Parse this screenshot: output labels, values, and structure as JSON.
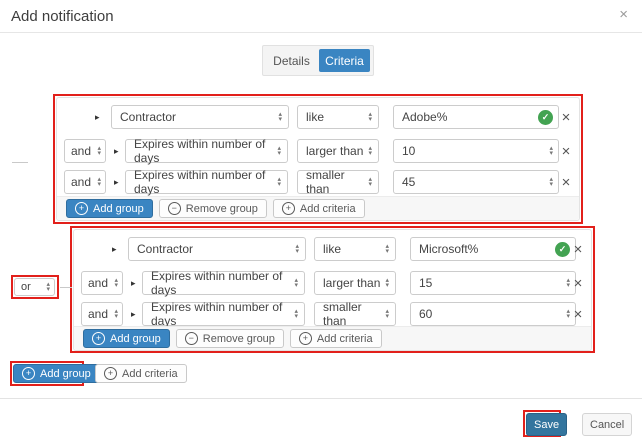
{
  "dialog": {
    "title": "Add notification"
  },
  "tabs": [
    {
      "label": "Details",
      "active": false
    },
    {
      "label": "Criteria",
      "active": true
    }
  ],
  "or_operator": "or",
  "groups": [
    {
      "rows": [
        {
          "field": "Contractor",
          "operator": "like",
          "value": "Adobe%",
          "valid": true
        },
        {
          "bool": "and",
          "field": "Expires within number of days",
          "operator": "larger than",
          "value": "10"
        },
        {
          "bool": "and",
          "field": "Expires within number of days",
          "operator": "smaller than",
          "value": "45"
        }
      ]
    },
    {
      "rows": [
        {
          "field": "Contractor",
          "operator": "like",
          "value": "Microsoft%",
          "valid": true
        },
        {
          "bool": "and",
          "field": "Expires within number of days",
          "operator": "larger than",
          "value": "15"
        },
        {
          "bool": "and",
          "field": "Expires within number of days",
          "operator": "smaller than",
          "value": "60"
        }
      ]
    }
  ],
  "labels": {
    "add_group": "Add group",
    "remove_group": "Remove group",
    "add_criteria": "Add criteria",
    "save": "Save",
    "cancel": "Cancel"
  },
  "icons": {
    "close": "×",
    "check": "✓",
    "plus": "+",
    "minus": "−",
    "spin_up": "▴",
    "spin_down": "▾",
    "expander": "▸"
  },
  "colors": {
    "accent_blue": "#3a85c2",
    "save_blue": "#33759e",
    "annotation_red": "#e2201b",
    "valid_green": "#43a352"
  }
}
